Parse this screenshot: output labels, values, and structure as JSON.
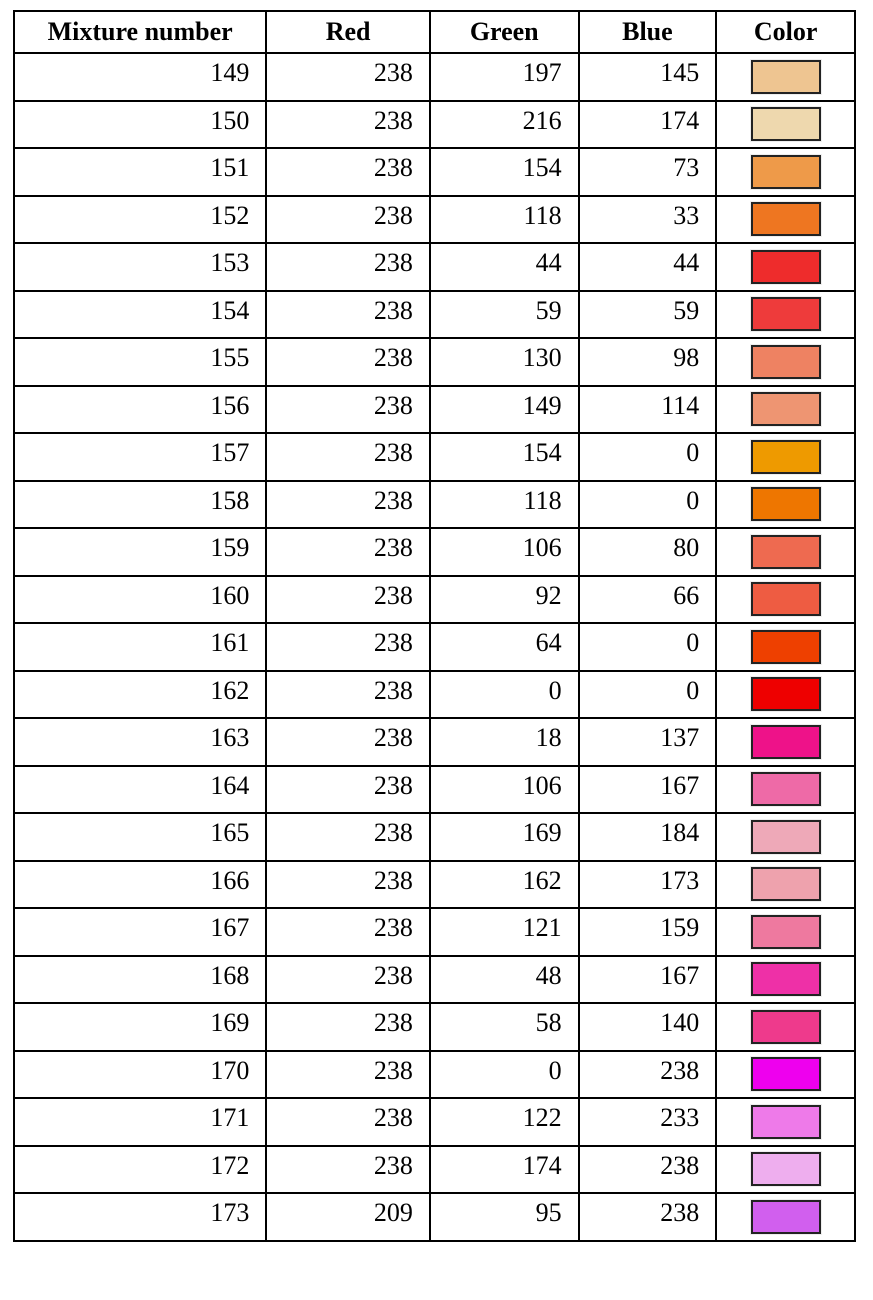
{
  "table": {
    "headers": [
      "Mixture number",
      "Red",
      "Green",
      "Blue",
      "Color"
    ],
    "rows": [
      {
        "mixture": "149",
        "red": "238",
        "green": "197",
        "blue": "145"
      },
      {
        "mixture": "150",
        "red": "238",
        "green": "216",
        "blue": "174"
      },
      {
        "mixture": "151",
        "red": "238",
        "green": "154",
        "blue": "73"
      },
      {
        "mixture": "152",
        "red": "238",
        "green": "118",
        "blue": "33"
      },
      {
        "mixture": "153",
        "red": "238",
        "green": "44",
        "blue": "44"
      },
      {
        "mixture": "154",
        "red": "238",
        "green": "59",
        "blue": "59"
      },
      {
        "mixture": "155",
        "red": "238",
        "green": "130",
        "blue": "98"
      },
      {
        "mixture": "156",
        "red": "238",
        "green": "149",
        "blue": "114"
      },
      {
        "mixture": "157",
        "red": "238",
        "green": "154",
        "blue": "0"
      },
      {
        "mixture": "158",
        "red": "238",
        "green": "118",
        "blue": "0"
      },
      {
        "mixture": "159",
        "red": "238",
        "green": "106",
        "blue": "80"
      },
      {
        "mixture": "160",
        "red": "238",
        "green": "92",
        "blue": "66"
      },
      {
        "mixture": "161",
        "red": "238",
        "green": "64",
        "blue": "0"
      },
      {
        "mixture": "162",
        "red": "238",
        "green": "0",
        "blue": "0"
      },
      {
        "mixture": "163",
        "red": "238",
        "green": "18",
        "blue": "137"
      },
      {
        "mixture": "164",
        "red": "238",
        "green": "106",
        "blue": "167"
      },
      {
        "mixture": "165",
        "red": "238",
        "green": "169",
        "blue": "184"
      },
      {
        "mixture": "166",
        "red": "238",
        "green": "162",
        "blue": "173"
      },
      {
        "mixture": "167",
        "red": "238",
        "green": "121",
        "blue": "159"
      },
      {
        "mixture": "168",
        "red": "238",
        "green": "48",
        "blue": "167"
      },
      {
        "mixture": "169",
        "red": "238",
        "green": "58",
        "blue": "140"
      },
      {
        "mixture": "170",
        "red": "238",
        "green": "0",
        "blue": "238"
      },
      {
        "mixture": "171",
        "red": "238",
        "green": "122",
        "blue": "233"
      },
      {
        "mixture": "172",
        "red": "238",
        "green": "174",
        "blue": "238"
      },
      {
        "mixture": "173",
        "red": "209",
        "green": "95",
        "blue": "238"
      }
    ]
  }
}
